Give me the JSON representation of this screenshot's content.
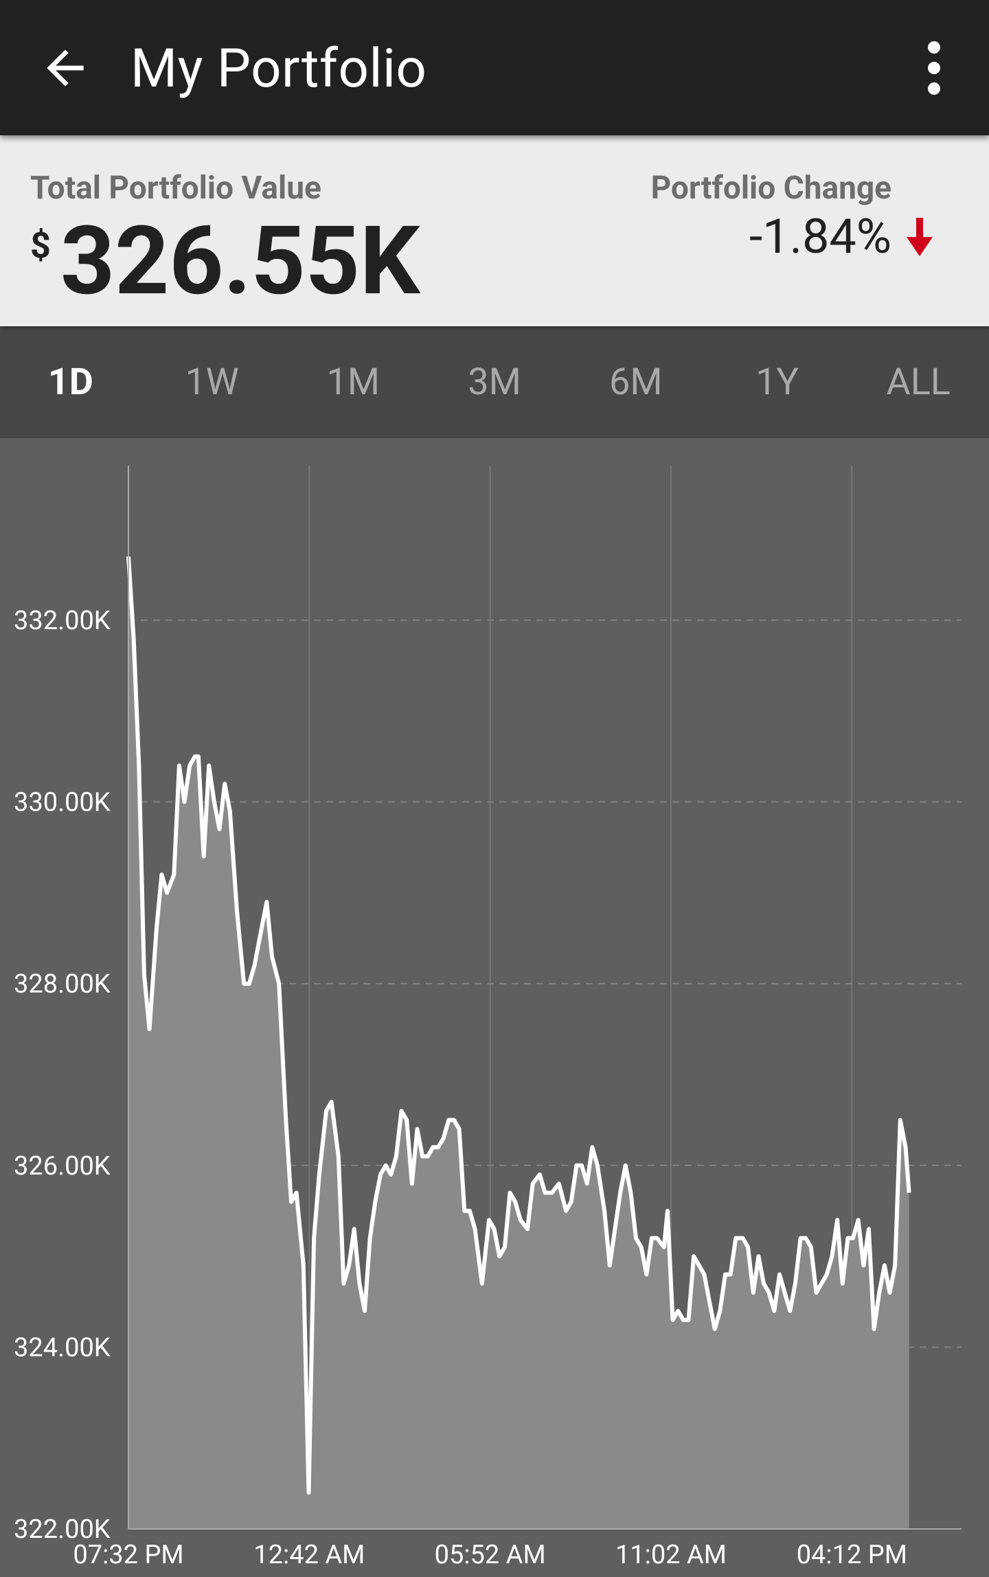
{
  "appbar": {
    "title": "My Portfolio",
    "back_icon": "arrow-left-icon",
    "menu_icon": "more-vert-icon"
  },
  "summary": {
    "total_label": "Total Portfolio Value",
    "currency": "$",
    "total_value": "326.55K",
    "change_label": "Portfolio Change",
    "change_value": "-1.84%",
    "change_direction": "down",
    "change_color": "#d0021b"
  },
  "tabs": [
    {
      "label": "1D",
      "active": true
    },
    {
      "label": "1W",
      "active": false
    },
    {
      "label": "1M",
      "active": false
    },
    {
      "label": "3M",
      "active": false
    },
    {
      "label": "6M",
      "active": false
    },
    {
      "label": "1Y",
      "active": false
    },
    {
      "label": "ALL",
      "active": false
    }
  ],
  "colors": {
    "appbar_bg": "#212121",
    "summary_bg": "#ececec",
    "tabs_bg": "#474747",
    "chart_bg": "#5f5f5f",
    "area_fill": "#8a8a8a",
    "line": "#ffffff"
  },
  "chart_data": {
    "type": "area",
    "title": "",
    "xlabel": "",
    "ylabel": "",
    "y_tick_labels": [
      "332.00K",
      "330.00K",
      "328.00K",
      "326.00K",
      "324.00K",
      "322.00K"
    ],
    "y_ticks": [
      332000,
      330000,
      328000,
      326000,
      324000,
      322000
    ],
    "ylim": [
      322000,
      333700
    ],
    "x_tick_labels": [
      "07:32 PM",
      "12:42 AM",
      "05:52 AM",
      "11:02 AM",
      "04:12 PM"
    ],
    "x_ticks_hours": [
      0,
      5.1667,
      10.3333,
      15.5,
      20.6667
    ],
    "xlim_hours": [
      0,
      23.8
    ],
    "grid": true,
    "series": [
      {
        "values": [
          [
            0.0,
            332700
          ],
          [
            0.15,
            331800
          ],
          [
            0.3,
            330400
          ],
          [
            0.45,
            328100
          ],
          [
            0.6,
            327500
          ],
          [
            0.8,
            328600
          ],
          [
            0.95,
            329200
          ],
          [
            1.1,
            329000
          ],
          [
            1.3,
            329200
          ],
          [
            1.45,
            330400
          ],
          [
            1.6,
            330000
          ],
          [
            1.75,
            330400
          ],
          [
            1.9,
            330500
          ],
          [
            2.0,
            330500
          ],
          [
            2.15,
            329400
          ],
          [
            2.3,
            330400
          ],
          [
            2.45,
            330000
          ],
          [
            2.6,
            329700
          ],
          [
            2.75,
            330200
          ],
          [
            2.9,
            329900
          ],
          [
            3.1,
            328800
          ],
          [
            3.3,
            328000
          ],
          [
            3.45,
            328000
          ],
          [
            3.6,
            328200
          ],
          [
            3.75,
            328500
          ],
          [
            3.95,
            328900
          ],
          [
            4.1,
            328300
          ],
          [
            4.3,
            328000
          ],
          [
            4.5,
            326500
          ],
          [
            4.65,
            325600
          ],
          [
            4.8,
            325700
          ],
          [
            5.0,
            324900
          ],
          [
            5.15,
            322400
          ],
          [
            5.3,
            325200
          ],
          [
            5.45,
            325900
          ],
          [
            5.65,
            326600
          ],
          [
            5.8,
            326700
          ],
          [
            6.0,
            326100
          ],
          [
            6.15,
            324700
          ],
          [
            6.3,
            324900
          ],
          [
            6.45,
            325300
          ],
          [
            6.6,
            324700
          ],
          [
            6.75,
            324400
          ],
          [
            6.9,
            325200
          ],
          [
            7.05,
            325600
          ],
          [
            7.2,
            325900
          ],
          [
            7.35,
            326000
          ],
          [
            7.5,
            325900
          ],
          [
            7.65,
            326100
          ],
          [
            7.8,
            326600
          ],
          [
            7.95,
            326500
          ],
          [
            8.1,
            325800
          ],
          [
            8.25,
            326400
          ],
          [
            8.4,
            326100
          ],
          [
            8.55,
            326100
          ],
          [
            8.7,
            326200
          ],
          [
            8.85,
            326200
          ],
          [
            9.0,
            326300
          ],
          [
            9.15,
            326500
          ],
          [
            9.3,
            326500
          ],
          [
            9.45,
            326400
          ],
          [
            9.6,
            325500
          ],
          [
            9.75,
            325500
          ],
          [
            9.9,
            325300
          ],
          [
            10.1,
            324700
          ],
          [
            10.3,
            325400
          ],
          [
            10.45,
            325300
          ],
          [
            10.6,
            325000
          ],
          [
            10.75,
            325100
          ],
          [
            10.9,
            325700
          ],
          [
            11.05,
            325600
          ],
          [
            11.2,
            325400
          ],
          [
            11.4,
            325300
          ],
          [
            11.55,
            325800
          ],
          [
            11.75,
            325900
          ],
          [
            11.9,
            325700
          ],
          [
            12.1,
            325700
          ],
          [
            12.3,
            325800
          ],
          [
            12.5,
            325500
          ],
          [
            12.65,
            325600
          ],
          [
            12.8,
            326000
          ],
          [
            12.95,
            326000
          ],
          [
            13.1,
            325800
          ],
          [
            13.25,
            326200
          ],
          [
            13.4,
            326000
          ],
          [
            13.6,
            325500
          ],
          [
            13.75,
            324900
          ],
          [
            13.9,
            325300
          ],
          [
            14.05,
            325700
          ],
          [
            14.2,
            326000
          ],
          [
            14.35,
            325700
          ],
          [
            14.5,
            325200
          ],
          [
            14.65,
            325100
          ],
          [
            14.8,
            324800
          ],
          [
            14.95,
            325200
          ],
          [
            15.1,
            325200
          ],
          [
            15.3,
            325100
          ],
          [
            15.4,
            325500
          ],
          [
            15.55,
            324300
          ],
          [
            15.7,
            324400
          ],
          [
            15.85,
            324300
          ],
          [
            16.0,
            324300
          ],
          [
            16.15,
            325000
          ],
          [
            16.3,
            324900
          ],
          [
            16.45,
            324800
          ],
          [
            16.6,
            324500
          ],
          [
            16.75,
            324200
          ],
          [
            16.9,
            324400
          ],
          [
            17.05,
            324800
          ],
          [
            17.2,
            324800
          ],
          [
            17.35,
            325200
          ],
          [
            17.55,
            325200
          ],
          [
            17.7,
            325100
          ],
          [
            17.85,
            324600
          ],
          [
            18.0,
            325000
          ],
          [
            18.15,
            324700
          ],
          [
            18.3,
            324600
          ],
          [
            18.45,
            324400
          ],
          [
            18.6,
            324800
          ],
          [
            18.75,
            324600
          ],
          [
            18.9,
            324400
          ],
          [
            19.05,
            324700
          ],
          [
            19.2,
            325200
          ],
          [
            19.35,
            325200
          ],
          [
            19.5,
            325100
          ],
          [
            19.65,
            324600
          ],
          [
            19.8,
            324700
          ],
          [
            19.95,
            324800
          ],
          [
            20.1,
            325000
          ],
          [
            20.25,
            325400
          ],
          [
            20.4,
            324700
          ],
          [
            20.55,
            325200
          ],
          [
            20.7,
            325200
          ],
          [
            20.85,
            325400
          ],
          [
            21.0,
            324900
          ],
          [
            21.15,
            325300
          ],
          [
            21.3,
            324200
          ],
          [
            21.45,
            324600
          ],
          [
            21.6,
            324900
          ],
          [
            21.75,
            324600
          ],
          [
            21.9,
            324900
          ],
          [
            22.05,
            326500
          ],
          [
            22.2,
            326200
          ],
          [
            22.3,
            325700
          ]
        ]
      }
    ]
  }
}
